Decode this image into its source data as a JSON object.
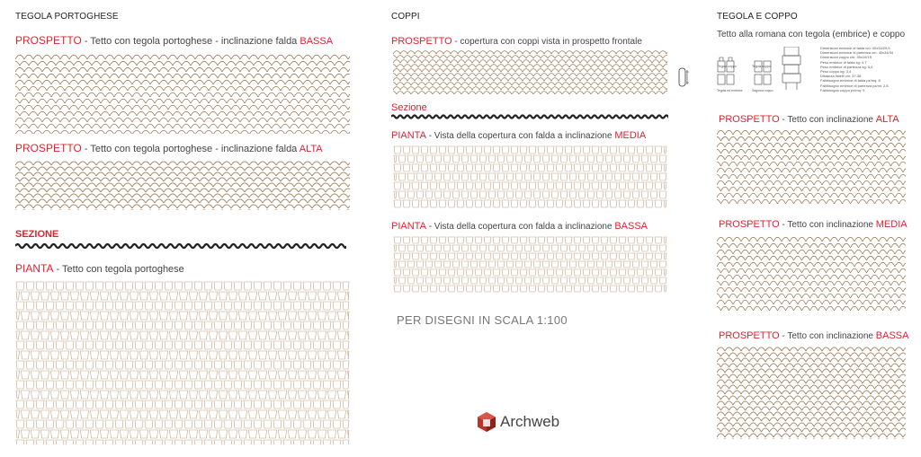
{
  "columns": {
    "left": {
      "title": "TEGOLA PORTOGHESE",
      "prospetto_bassa": {
        "keyword": "PROSPETTO",
        "text": " - Tetto con tegola portoghese - inclinazione falda ",
        "accent": "BASSA"
      },
      "prospetto_alta": {
        "keyword": "PROSPETTO",
        "text": " - Tetto con tegola portoghese - inclinazione falda ",
        "accent": "ALTA"
      },
      "sezione": "SEZIONE",
      "pianta": {
        "keyword": "PIANTA",
        "text": " - Tetto con tegola portoghese"
      }
    },
    "middle": {
      "title": "COPPI",
      "prospetto": {
        "keyword": "PROSPETTO",
        "text": " - copertura con coppi vista in prospetto frontale"
      },
      "sezione": "Sezione",
      "pianta_media": {
        "keyword": "PIANTA",
        "text": " - Vista della copertura con falda a inclinazione ",
        "accent": "MEDIA"
      },
      "pianta_bassa": {
        "keyword": "PIANTA",
        "text": " - Vista della copertura con falda a inclinazione ",
        "accent": "BASSA"
      },
      "scale_note": "PER DISEGNI IN SCALA 1:100"
    },
    "right": {
      "title": "TEGOLA E COPPO",
      "subtitle": "Tetto alla romana con tegola (embrice) e coppo",
      "detail_captions": [
        "Tegola coppo",
        "Tegola ed embrice",
        "Tegola coppo",
        "Sagoma coppo"
      ],
      "specs": [
        "Dimensioni embrice di falda cm: 40x34/29,5",
        "Dimensioni embrice di partenza cm: 40x34/34",
        "Dimensioni coppo cm: 45x19/15",
        "Peso embrice di falda kg: 4,7",
        "Peso embrice di partenza kg: 5,6",
        "Peso coppo kg: 3,4",
        "Distanza listelli cm: 37-38",
        "Fabbisogno embrice di falda pz/mq: 8",
        "Fabbisogno embrice di partenza pz/ml: 2,8",
        "Fabbisogno coppo pz/mq: 9"
      ],
      "prospetto_alta": {
        "keyword": "PROSPETTO",
        "text": " - Tetto con inclinazione ",
        "accent": "ALTA"
      },
      "prospetto_media": {
        "keyword": "PROSPETTO",
        "text": " - Tetto con inclinazione ",
        "accent": "MEDIA"
      },
      "prospetto_bassa": {
        "keyword": "PROSPETTO",
        "text": " - Tetto con inclinazione ",
        "accent": "BASSA"
      }
    }
  },
  "brand": {
    "name": "Archweb"
  },
  "colors": {
    "accent": "#e3202d",
    "tile_stroke": "#a07c5a",
    "plan_stroke": "#bfa282",
    "logo": "#b8352a"
  }
}
